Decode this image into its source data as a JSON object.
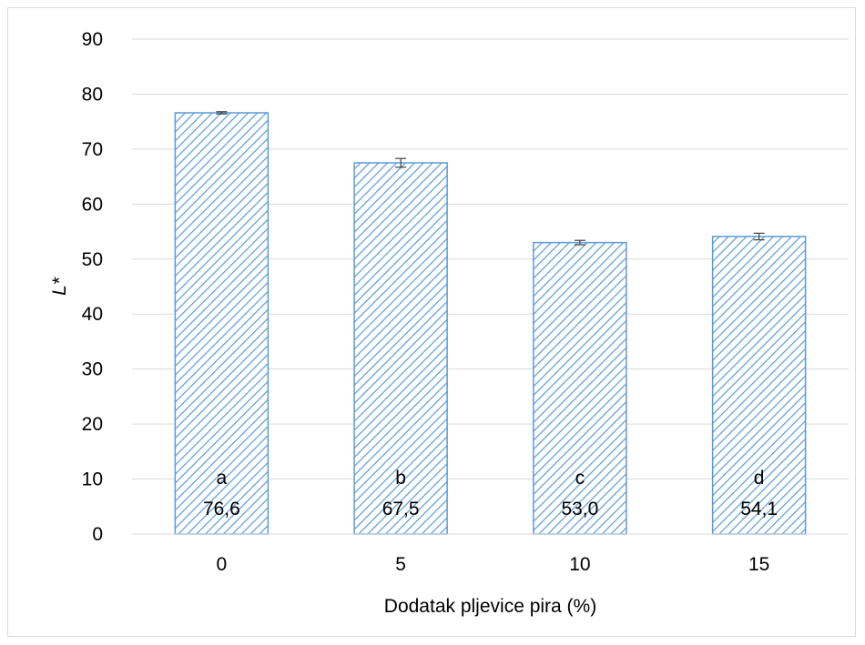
{
  "chart_data": {
    "type": "bar",
    "categories": [
      "0",
      "5",
      "10",
      "15"
    ],
    "values": [
      76.6,
      67.5,
      53.0,
      54.1
    ],
    "errors": [
      0.2,
      0.8,
      0.4,
      0.6
    ],
    "letters": [
      "a",
      "b",
      "c",
      "d"
    ],
    "value_labels": [
      "76,6",
      "67,5",
      "53,0",
      "54,1"
    ],
    "xlabel": "Dodatak pljevice pira (%)",
    "ylabel": "L*",
    "ylim": [
      0,
      90
    ],
    "yticks": [
      "0",
      "10",
      "20",
      "30",
      "40",
      "50",
      "60",
      "70",
      "80",
      "90"
    ],
    "grid": true,
    "legend": "none"
  },
  "colors": {
    "bar_stroke": "#5b9bd5",
    "bar_hatch": "#5b9bd5",
    "gridline": "#d9d9d9",
    "error_bar": "#404040"
  }
}
